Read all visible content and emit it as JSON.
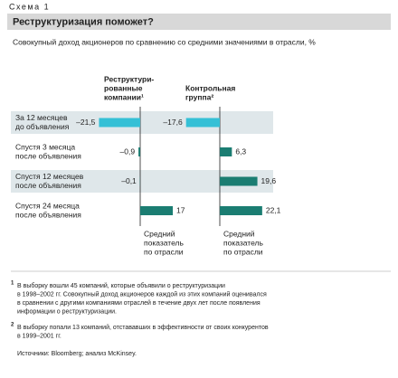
{
  "label": "Схема 1",
  "chart_data": {
    "type": "bar",
    "title": "Реструктуризация поможет?",
    "subtitle": "Совокупный доход акционеров по сравнению со средними значениями в отрасли, %",
    "categories": [
      [
        "За 12 месяцев",
        "до объявления"
      ],
      [
        "Спустя 3 месяца",
        "после объявления"
      ],
      [
        "Спустя 12 месяцев",
        "после объявления"
      ],
      [
        "Спустя 24 месяца",
        "после объявления"
      ]
    ],
    "series": [
      {
        "name": [
          "Реструктури-",
          "рованные",
          "компании¹"
        ],
        "colors": [
          "#35c0d6",
          "#1b7d72",
          "#1b7d72",
          "#1b7d72"
        ],
        "values": [
          -21.5,
          -0.9,
          -0.1,
          17
        ],
        "value_labels": [
          "–21,5",
          "–0,9",
          "–0,1",
          "17"
        ]
      },
      {
        "name": [
          "Контрольная",
          "группа²"
        ],
        "colors": [
          "#35c0d6",
          "#1b7d72",
          "#1b7d72",
          "#1b7d72"
        ],
        "values": [
          -17.6,
          6.3,
          19.6,
          22.1
        ],
        "value_labels": [
          "–17,6",
          "6,3",
          "19,6",
          "22,1"
        ]
      }
    ],
    "xlim": [
      -25,
      25
    ],
    "reference_label": [
      "Средний",
      "показатель",
      "по отрасли"
    ]
  },
  "notes": [
    {
      "mark": "1",
      "lines": [
        "В выборку вошли 45 компаний, которые объявили о реструктуризации",
        "в 1998–2002 гг. Совокупный доход акционеров каждой из этих компаний оценивался",
        "в сравнении с другими компаниями отраслей в течение двух лет после появления",
        "информации о реструктуризации."
      ]
    },
    {
      "mark": "2",
      "lines": [
        "В выборку попали 13 компаний, отстававших в эффективности от своих конкурентов",
        "в 1999–2001 гг."
      ]
    }
  ],
  "source": "Источники: Bloomberg; анализ McKinsey."
}
